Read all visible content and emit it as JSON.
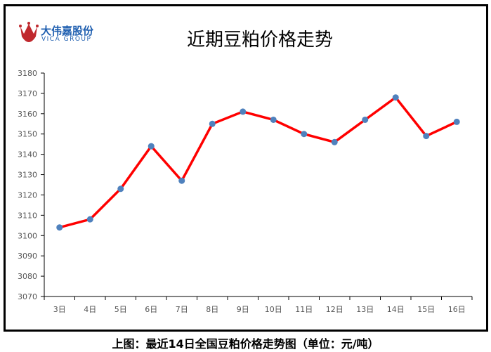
{
  "logo": {
    "name_cn": "大伟嘉股份",
    "name_en": "VICA GROUP"
  },
  "caption": "上图：最近14日全国豆粕价格走势图（单位：元/吨）",
  "colors": {
    "line": "#ff0000",
    "marker": "#4f81bd",
    "logo": "#1f5fb0"
  },
  "chart_data": {
    "type": "line",
    "title": "近期豆粕价格走势",
    "categories": [
      "3日",
      "4日",
      "5日",
      "6日",
      "7日",
      "8日",
      "9日",
      "10日",
      "11日",
      "12日",
      "13日",
      "14日",
      "15日",
      "16日"
    ],
    "series": [
      {
        "name": "豆粕价格",
        "values": [
          3104,
          3108,
          3123,
          3144,
          3127,
          3155,
          3161,
          3157,
          3150,
          3146,
          3157,
          3168,
          3149,
          3156
        ]
      }
    ],
    "ylim": [
      3070,
      3180
    ],
    "yticks": [
      3070,
      3080,
      3090,
      3100,
      3110,
      3120,
      3130,
      3140,
      3150,
      3160,
      3170,
      3180
    ],
    "xlabel": "",
    "ylabel": "",
    "grid": false,
    "legend": "none"
  }
}
